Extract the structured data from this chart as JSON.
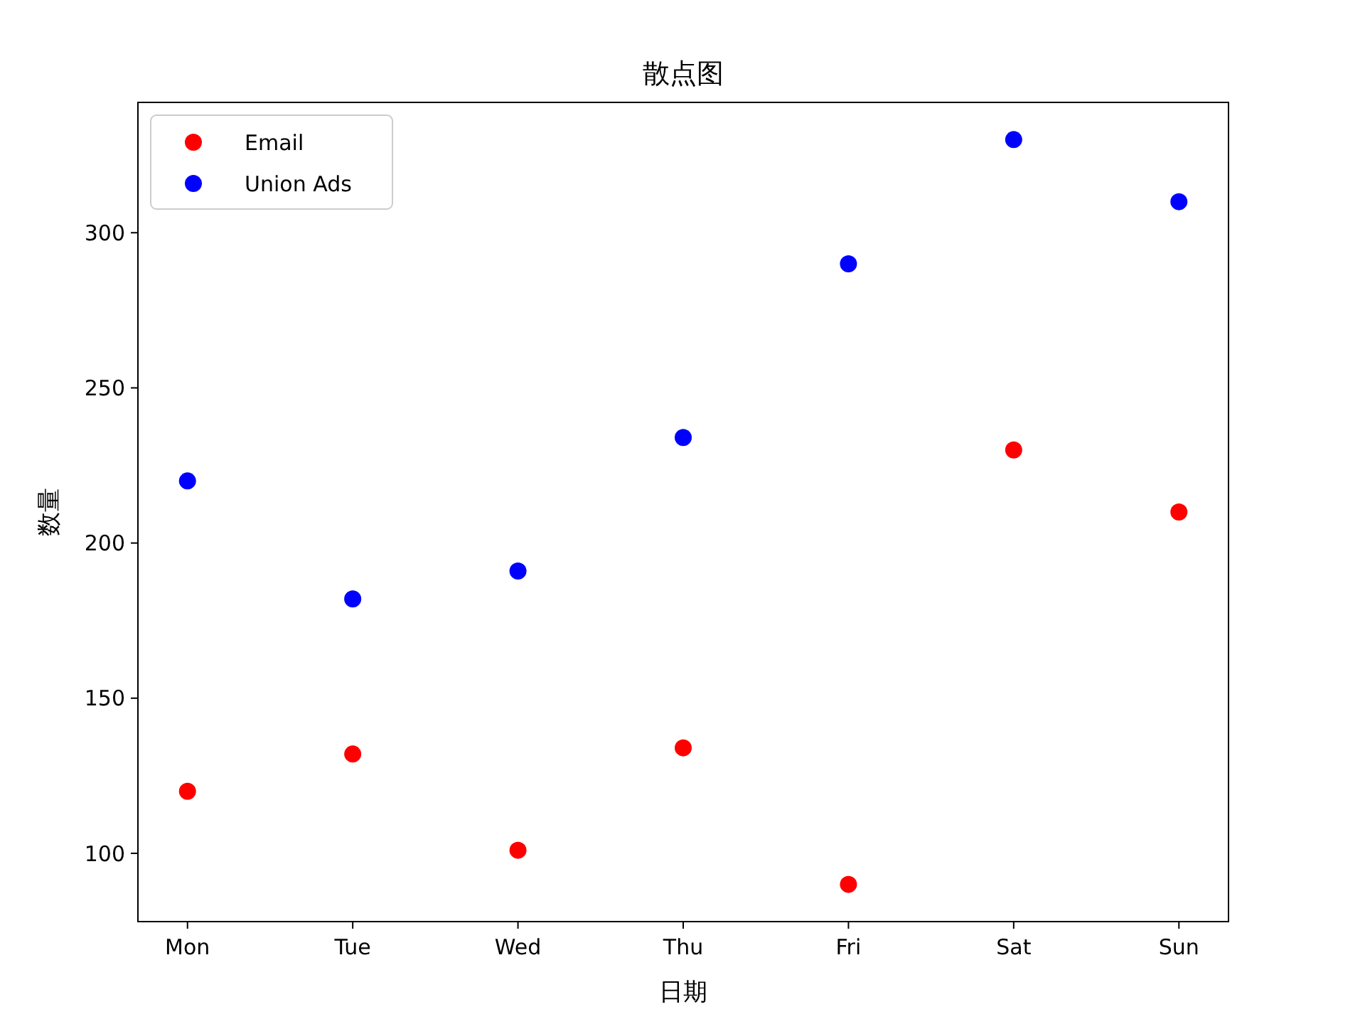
{
  "chart_data": {
    "type": "scatter",
    "title": "散点图",
    "xlabel": "日期",
    "ylabel": "数量",
    "categories": [
      "Mon",
      "Tue",
      "Wed",
      "Thu",
      "Fri",
      "Sat",
      "Sun"
    ],
    "series": [
      {
        "name": "Email",
        "color": "#ff0000",
        "values": [
          120,
          132,
          101,
          134,
          90,
          230,
          210
        ]
      },
      {
        "name": "Union Ads",
        "color": "#0000ff",
        "values": [
          220,
          182,
          191,
          234,
          290,
          330,
          310
        ]
      }
    ],
    "ylim": [
      78,
      342
    ],
    "yticks": [
      100,
      150,
      200,
      250,
      300
    ],
    "legend": "top left",
    "marker": "circle",
    "grid": false
  }
}
